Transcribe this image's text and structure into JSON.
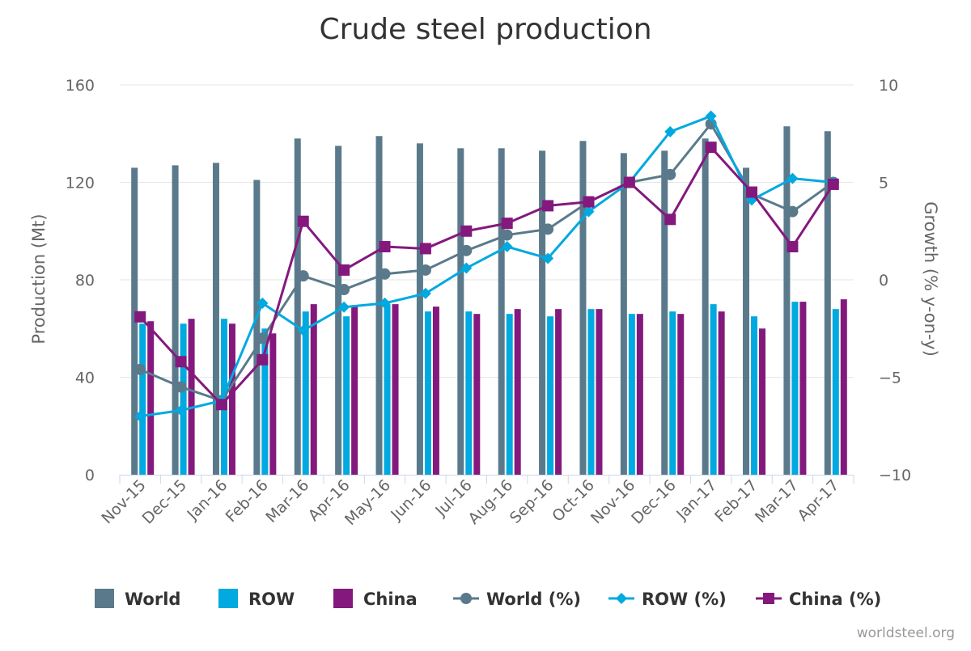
{
  "chart_data": {
    "type": "bar",
    "title": "Crude steel production",
    "credit": "worldsteel.org",
    "categories": [
      "Nov-15",
      "Dec-15",
      "Jan-16",
      "Feb-16",
      "Mar-16",
      "Apr-16",
      "May-16",
      "Jun-16",
      "Jul-16",
      "Aug-16",
      "Sep-16",
      "Oct-16",
      "Nov-16",
      "Dec-16",
      "Jan-17",
      "Feb-17",
      "Mar-17",
      "Apr-17"
    ],
    "ylabel_left": "Production (Mt)",
    "ylabel_right": "Growth (% y-on-y)",
    "ylim_left": [
      0,
      160
    ],
    "ylim_right": [
      -10,
      10
    ],
    "yticks_left": [
      "0",
      "40",
      "80",
      "120",
      "160"
    ],
    "yticks_right": [
      "−10",
      "−5",
      "0",
      "5",
      "10"
    ],
    "grid": true,
    "legend_position": "bottom",
    "series": [
      {
        "name": "World",
        "kind": "bar",
        "axis": "left",
        "color": "#5a7a8c",
        "values": [
          126,
          127,
          128,
          121,
          138,
          135,
          139,
          136,
          134,
          134,
          133,
          137,
          132,
          133,
          138,
          126,
          143,
          141
        ]
      },
      {
        "name": "ROW",
        "kind": "bar",
        "axis": "left",
        "color": "#00a9e0",
        "values": [
          62,
          62,
          64,
          60,
          67,
          65,
          70,
          67,
          67,
          66,
          65,
          68,
          66,
          67,
          70,
          65,
          71,
          68
        ]
      },
      {
        "name": "China",
        "kind": "bar",
        "axis": "left",
        "color": "#84197d",
        "values": [
          63,
          64,
          62,
          58,
          70,
          69,
          70,
          69,
          66,
          68,
          68,
          68,
          66,
          66,
          67,
          60,
          71,
          72
        ]
      },
      {
        "name": "World (%)",
        "kind": "line",
        "axis": "right",
        "color": "#5a7a8c",
        "marker": "circle",
        "values": [
          -4.6,
          -5.5,
          -6.2,
          -3.0,
          0.2,
          -0.5,
          0.3,
          0.5,
          1.5,
          2.3,
          2.6,
          4.0,
          5.0,
          5.4,
          8.0,
          4.4,
          3.5,
          5.0
        ]
      },
      {
        "name": "ROW (%)",
        "kind": "line",
        "axis": "right",
        "color": "#00a9e0",
        "marker": "diamond",
        "values": [
          -7.0,
          -6.7,
          -6.2,
          -1.2,
          -2.6,
          -1.4,
          -1.2,
          -0.7,
          0.6,
          1.7,
          1.1,
          3.5,
          5.0,
          7.6,
          8.4,
          4.1,
          5.2,
          5.0
        ]
      },
      {
        "name": "China (%)",
        "kind": "line",
        "axis": "right",
        "color": "#84197d",
        "marker": "square",
        "values": [
          -1.9,
          -4.2,
          -6.4,
          -4.1,
          3.0,
          0.5,
          1.7,
          1.6,
          2.5,
          2.9,
          3.8,
          4.0,
          5.0,
          3.1,
          6.8,
          4.5,
          1.7,
          4.9
        ]
      }
    ]
  }
}
